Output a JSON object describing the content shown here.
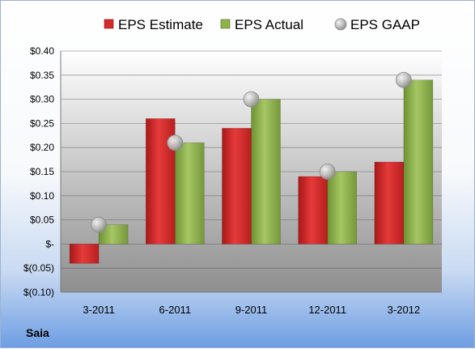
{
  "company": "Saia",
  "colors": {
    "estimate": "#d42a2a",
    "actual": "#8fb24a",
    "gaap": "#b8b8b8",
    "plot_top": "#ffffff",
    "plot_bottom": "#8e8e8e"
  },
  "chart_data": {
    "type": "bar",
    "categories": [
      "3-2011",
      "6-2011",
      "9-2011",
      "12-2011",
      "3-2012"
    ],
    "series": [
      {
        "name": "EPS Estimate",
        "kind": "bar",
        "values": [
          -0.04,
          0.26,
          0.24,
          0.14,
          0.17
        ]
      },
      {
        "name": "EPS Actual",
        "kind": "bar",
        "values": [
          0.04,
          0.21,
          0.3,
          0.15,
          0.34
        ]
      },
      {
        "name": "EPS GAAP",
        "kind": "marker",
        "values": [
          0.04,
          0.21,
          0.3,
          0.15,
          0.34
        ]
      }
    ],
    "ylim": [
      -0.1,
      0.4
    ],
    "yticks": [
      0.4,
      0.35,
      0.3,
      0.25,
      0.2,
      0.15,
      0.1,
      0.05,
      0,
      -0.05,
      -0.1
    ],
    "ytick_labels": [
      "$0.40",
      "$0.35",
      "$0.30",
      "$0.25",
      "$0.20",
      "$0.15",
      "$0.10",
      "$0.05",
      "$-",
      "$(0.05)",
      "$(0.10)"
    ],
    "legend_position": "top",
    "grid": true
  }
}
